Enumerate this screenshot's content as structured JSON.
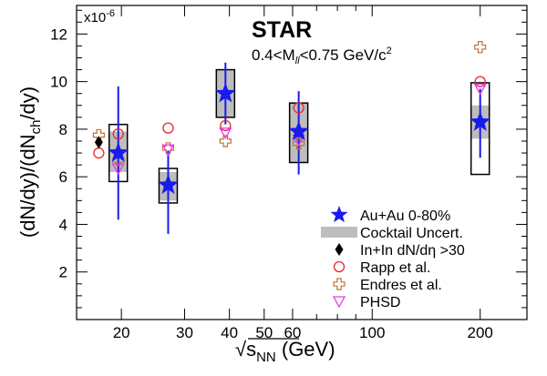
{
  "chart_data": {
    "type": "scatter",
    "x_scale": "log",
    "xlim": [
      15,
      270
    ],
    "ylim": [
      0,
      13.2
    ],
    "y_multiplier": "x10",
    "y_multiplier_exp": "-6",
    "title": "STAR",
    "subtitle_main": "0.4<M",
    "subtitle_sub": "ll",
    "subtitle_rest": "<0.75 GeV/c",
    "subtitle_sup": "2",
    "xlabel": {
      "pre": "√s",
      "sub": "NN",
      "post": " (GeV)"
    },
    "ylabel": {
      "part1": "(dN/dy)/(dN",
      "sub": "ch",
      "part2": "/dy)"
    },
    "x_ticks": [
      "20",
      "30",
      "40",
      "50",
      "60",
      "100",
      "200"
    ],
    "x_tick_values": [
      20,
      30,
      40,
      50,
      60,
      100,
      200
    ],
    "y_ticks": [
      "2",
      "4",
      "6",
      "8",
      "10",
      "12"
    ],
    "y_tick_values": [
      2,
      4,
      6,
      8,
      10,
      12
    ],
    "legend_position": "bottom-right",
    "legend": [
      {
        "key": "auau",
        "label": "Au+Au 0-80%"
      },
      {
        "key": "cocktail",
        "label": "Cocktail Uncert."
      },
      {
        "key": "inin",
        "label": "In+In dN/dη >30"
      },
      {
        "key": "rapp",
        "label": "Rapp et al."
      },
      {
        "key": "endres",
        "label": "Endres et al."
      },
      {
        "key": "phsd",
        "label": "PHSD"
      }
    ],
    "series": [
      {
        "key": "auau",
        "name": "Au+Au 0-80%",
        "color": "#1a1aee",
        "points": [
          {
            "x": 19.6,
            "y": 7.0,
            "err_low": 4.2,
            "err_high": 9.8,
            "sys_low": 5.8,
            "sys_high": 8.2,
            "cocktail_low": 6.2,
            "cocktail_high": 7.9
          },
          {
            "x": 27,
            "y": 5.65,
            "err_low": 3.6,
            "err_high": 7.1,
            "sys_low": 4.9,
            "sys_high": 6.35,
            "cocktail_low": 5.0,
            "cocktail_high": 6.2
          },
          {
            "x": 39,
            "y": 9.5,
            "err_low": 8.2,
            "err_high": 10.8,
            "sys_low": 8.5,
            "sys_high": 10.5,
            "cocktail_low": 8.5,
            "cocktail_high": 10.5
          },
          {
            "x": 62.4,
            "y": 7.9,
            "err_low": 6.1,
            "err_high": 9.6,
            "sys_low": 6.6,
            "sys_high": 9.1,
            "cocktail_low": 6.6,
            "cocktail_high": 9.1
          },
          {
            "x": 200,
            "y": 8.3,
            "err_low": 6.8,
            "err_high": 9.7,
            "sys_low": 6.1,
            "sys_high": 9.95,
            "cocktail_low": 7.6,
            "cocktail_high": 9.0
          }
        ]
      },
      {
        "key": "inin",
        "name": "In+In dN/dη >30",
        "color": "#000000",
        "points": [
          {
            "x": 17.3,
            "y": 7.45
          }
        ]
      },
      {
        "key": "rapp",
        "name": "Rapp et al.",
        "color": "#e8262e",
        "points": [
          {
            "x": 17.3,
            "y": 7.0
          },
          {
            "x": 19.6,
            "y": 7.8
          },
          {
            "x": 27,
            "y": 8.05
          },
          {
            "x": 39,
            "y": 8.15
          },
          {
            "x": 62.4,
            "y": 8.9
          },
          {
            "x": 200,
            "y": 10.0
          }
        ]
      },
      {
        "key": "endres",
        "name": "Endres et al.",
        "color": "#c0703a",
        "points": [
          {
            "x": 17.3,
            "y": 7.75
          },
          {
            "x": 19.6,
            "y": 6.7
          },
          {
            "x": 27,
            "y": 7.2
          },
          {
            "x": 39,
            "y": 7.5
          },
          {
            "x": 62.4,
            "y": 7.4
          },
          {
            "x": 200,
            "y": 11.45
          }
        ]
      },
      {
        "key": "phsd",
        "name": "PHSD",
        "color": "#e838e8",
        "points": [
          {
            "x": 19.6,
            "y": 6.35
          },
          {
            "x": 27,
            "y": 7.15
          },
          {
            "x": 39,
            "y": 7.85
          },
          {
            "x": 62.4,
            "y": 7.55
          },
          {
            "x": 200,
            "y": 9.7
          }
        ]
      }
    ]
  }
}
